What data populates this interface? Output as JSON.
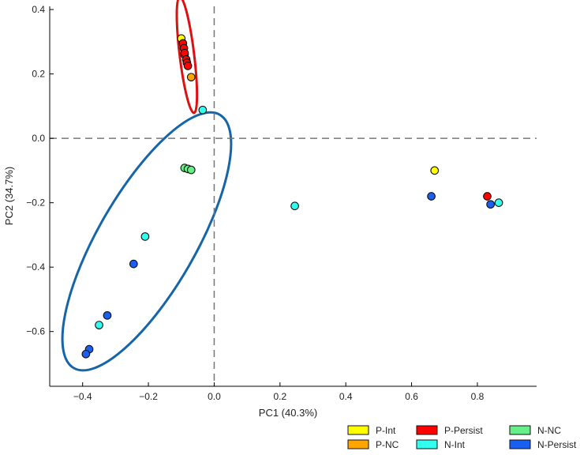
{
  "chart_data": {
    "type": "scatter",
    "title": "",
    "xlabel": "PC1 (40.3%)",
    "ylabel": "PC2 (34.7%)",
    "xlim": [
      -0.5,
      0.98
    ],
    "ylim": [
      -0.77,
      0.41
    ],
    "xticks": [
      -0.4,
      -0.2,
      0.0,
      0.2,
      0.4,
      0.6,
      0.8
    ],
    "yticks": [
      0.4,
      0.2,
      0.0,
      -0.2,
      -0.4,
      -0.6
    ],
    "xtick_labels": [
      "−0.4",
      "−0.2",
      "0.0",
      "0.2",
      "0.4",
      "0.6",
      "0.8"
    ],
    "ytick_labels": [
      "0.4",
      "0.2",
      "0.0",
      "−0.2",
      "−0.4",
      "−0.6"
    ],
    "reference_lines": {
      "x": 0.0,
      "y": 0.0,
      "style": "dashed"
    },
    "series": [
      {
        "name": "P-Int",
        "color": "#ffff00",
        "points": [
          [
            -0.1,
            0.31
          ],
          [
            0.67,
            -0.1
          ]
        ]
      },
      {
        "name": "P-NC",
        "color": "#ffa500",
        "points": [
          [
            -0.07,
            0.19
          ],
          [
            -0.09,
            0.26
          ]
        ]
      },
      {
        "name": "P-Persist",
        "color": "#ff0000",
        "points": [
          [
            -0.095,
            0.295
          ],
          [
            -0.092,
            0.28
          ],
          [
            -0.09,
            0.265
          ],
          [
            -0.085,
            0.245
          ],
          [
            -0.083,
            0.235
          ],
          [
            -0.08,
            0.225
          ],
          [
            0.83,
            -0.18
          ]
        ]
      },
      {
        "name": "N-Int",
        "color": "#33ffee",
        "points": [
          [
            -0.035,
            0.088
          ],
          [
            0.245,
            -0.21
          ],
          [
            0.865,
            -0.2
          ],
          [
            -0.21,
            -0.305
          ],
          [
            -0.35,
            -0.58
          ]
        ]
      },
      {
        "name": "N-NC",
        "color": "#66ee88",
        "points": [
          [
            -0.09,
            -0.092
          ],
          [
            -0.08,
            -0.095
          ],
          [
            -0.07,
            -0.098
          ]
        ]
      },
      {
        "name": "N-Persist",
        "color": "#1a5ff0",
        "points": [
          [
            0.66,
            -0.18
          ],
          [
            0.84,
            -0.205
          ],
          [
            -0.245,
            -0.39
          ],
          [
            -0.325,
            -0.55
          ],
          [
            -0.38,
            -0.655
          ],
          [
            -0.39,
            -0.67
          ]
        ]
      }
    ],
    "ellipses": [
      {
        "name": "P-group ellipse",
        "color": "#dd1111",
        "center": [
          -0.083,
          0.259
        ],
        "rx_data": 0.04,
        "ry_data": 0.111,
        "angle_deg": -7
      },
      {
        "name": "N-group ellipse",
        "color": "#1565a8",
        "center": [
          -0.205,
          -0.32
        ],
        "rx_data": 0.285,
        "ry_data": 0.3,
        "angle_deg": 30
      }
    ]
  }
}
